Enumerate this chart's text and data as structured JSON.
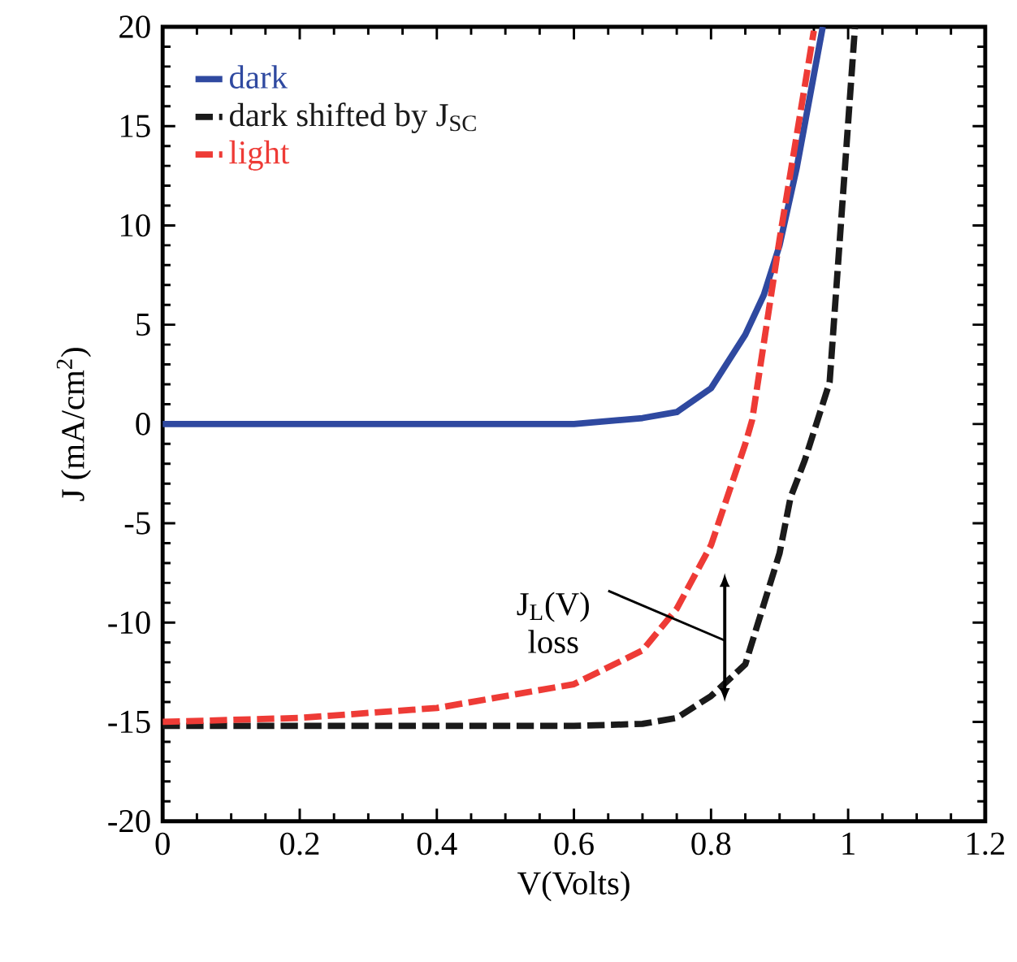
{
  "chart_data": {
    "type": "line",
    "xlabel": "V(Volts)",
    "ylabel": "J (mA/cm$^{2}$)",
    "xlim": [
      0,
      1.2
    ],
    "ylim": [
      -20,
      20
    ],
    "xticks": [
      0,
      0.2,
      0.4,
      0.6,
      0.8,
      1,
      1.2
    ],
    "yticks": [
      -20,
      -15,
      -10,
      -5,
      0,
      5,
      10,
      15,
      20
    ],
    "legend": "top left",
    "grid": false,
    "series": [
      {
        "name": "dark",
        "color": "#2f49a0",
        "line_style": "solid",
        "x": [
          0,
          0.2,
          0.4,
          0.6,
          0.7,
          0.75,
          0.8,
          0.85,
          0.877,
          0.9,
          0.925,
          0.963
        ],
        "values": [
          0,
          0,
          0,
          0,
          0.3,
          0.6,
          1.8,
          4.5,
          6.5,
          9,
          12.9,
          20
        ]
      },
      {
        "name": "dark shifted by J$_{SC}$",
        "color": "#1a1a1a",
        "line_style": "dashed",
        "x": [
          0,
          0.2,
          0.4,
          0.6,
          0.7,
          0.75,
          0.8,
          0.85,
          0.9,
          0.916,
          0.937,
          0.973,
          1.01
        ],
        "values": [
          -15.2,
          -15.2,
          -15.2,
          -15.2,
          -15.1,
          -14.8,
          -13.7,
          -12.1,
          -6.5,
          -3.7,
          -1.8,
          2.1,
          20
        ]
      },
      {
        "name": "light",
        "color": "#ee3b36",
        "line_style": "dashed",
        "x": [
          0,
          0.2,
          0.4,
          0.6,
          0.7,
          0.75,
          0.8,
          0.85,
          0.86,
          0.9,
          0.95
        ],
        "values": [
          -15,
          -14.8,
          -14.3,
          -13.1,
          -11.4,
          -9.3,
          -6.1,
          -1.0,
          0.2,
          9.3,
          19.8
        ]
      }
    ],
    "annotations": [
      "J$_{L}$(V) loss"
    ]
  }
}
